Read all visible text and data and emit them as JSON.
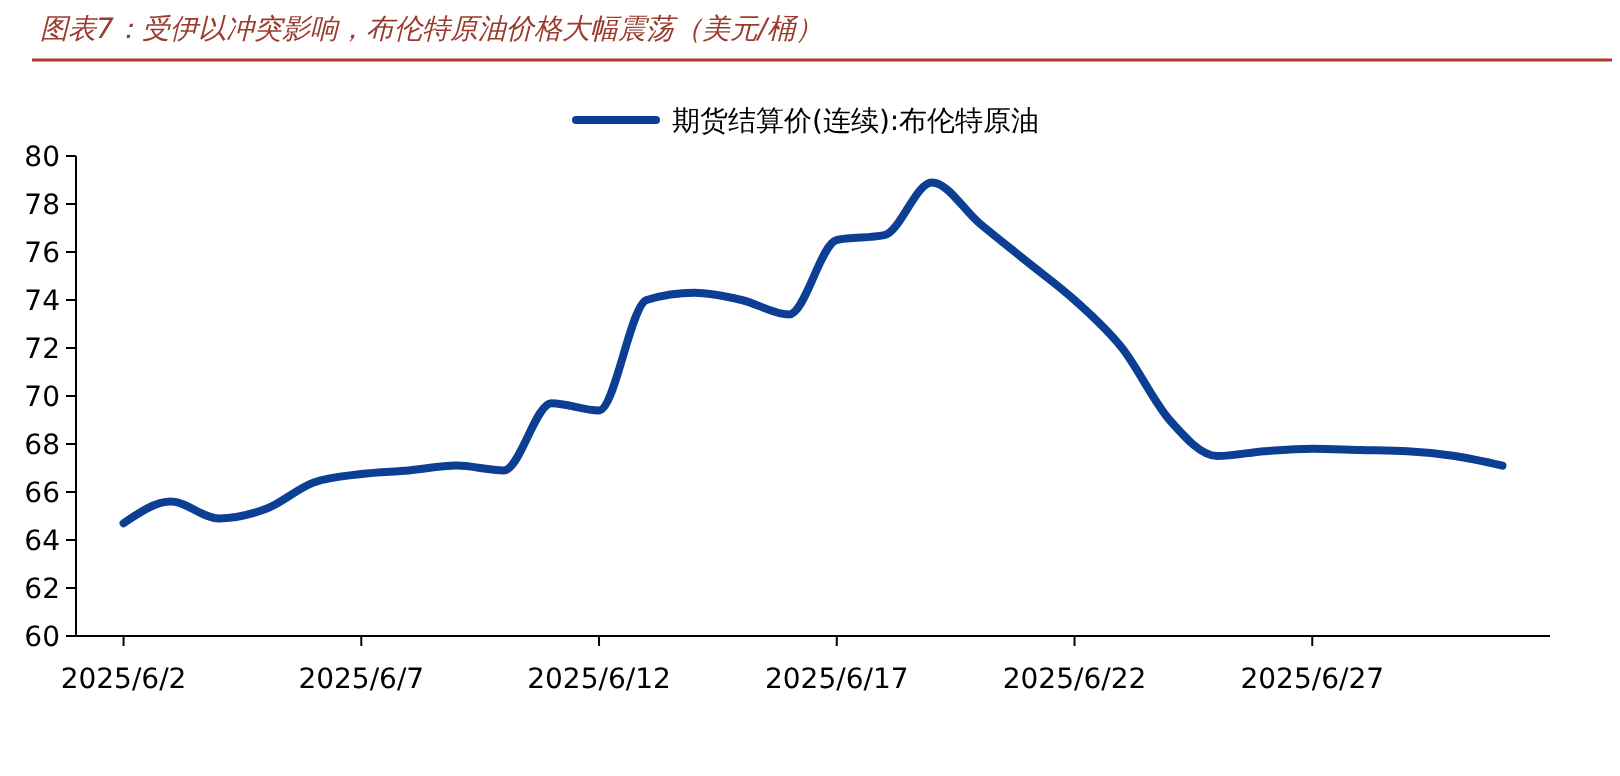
{
  "chart_data": {
    "type": "line",
    "title": "图表7：受伊以冲突影响，布伦特原油价格大幅震荡（美元/桶）",
    "x": [
      "2025-06-02",
      "2025-06-03",
      "2025-06-04",
      "2025-06-05",
      "2025-06-06",
      "2025-06-07",
      "2025-06-08",
      "2025-06-09",
      "2025-06-10",
      "2025-06-11",
      "2025-06-12",
      "2025-06-13",
      "2025-06-14",
      "2025-06-15",
      "2025-06-16",
      "2025-06-17",
      "2025-06-18",
      "2025-06-19",
      "2025-06-20",
      "2025-06-21",
      "2025-06-22",
      "2025-06-23",
      "2025-06-24",
      "2025-06-25",
      "2025-06-26",
      "2025-06-27",
      "2025-06-28",
      "2025-06-29",
      "2025-06-30",
      "2025-07-01"
    ],
    "series": [
      {
        "name": "期货结算价(连续):布伦特原油",
        "color": "#0c3f94",
        "values": [
          64.7,
          65.6,
          64.9,
          65.3,
          66.4,
          66.75,
          66.9,
          67.1,
          66.9,
          69.7,
          69.4,
          74.0,
          74.3,
          74.0,
          73.4,
          76.5,
          76.7,
          78.9,
          77.2,
          75.6,
          74.0,
          72.0,
          69.0,
          67.5,
          67.7,
          67.8,
          67.75,
          67.7,
          67.5,
          67.1
        ]
      }
    ],
    "xlim": [
      "2025-06-01",
      "2025-07-02"
    ],
    "xticks": [
      {
        "value": "2025-06-02",
        "label": "2025/6/2"
      },
      {
        "value": "2025-06-07",
        "label": "2025/6/7"
      },
      {
        "value": "2025-06-12",
        "label": "2025/6/12"
      },
      {
        "value": "2025-06-17",
        "label": "2025/6/17"
      },
      {
        "value": "2025-06-22",
        "label": "2025/6/22"
      },
      {
        "value": "2025-06-27",
        "label": "2025/6/27"
      }
    ],
    "ylim": [
      60,
      80
    ],
    "yticks": [
      60,
      62,
      64,
      66,
      68,
      70,
      72,
      74,
      76,
      78,
      80
    ],
    "grid": false,
    "legend": "top",
    "marker": "none",
    "line_style": "solid"
  }
}
